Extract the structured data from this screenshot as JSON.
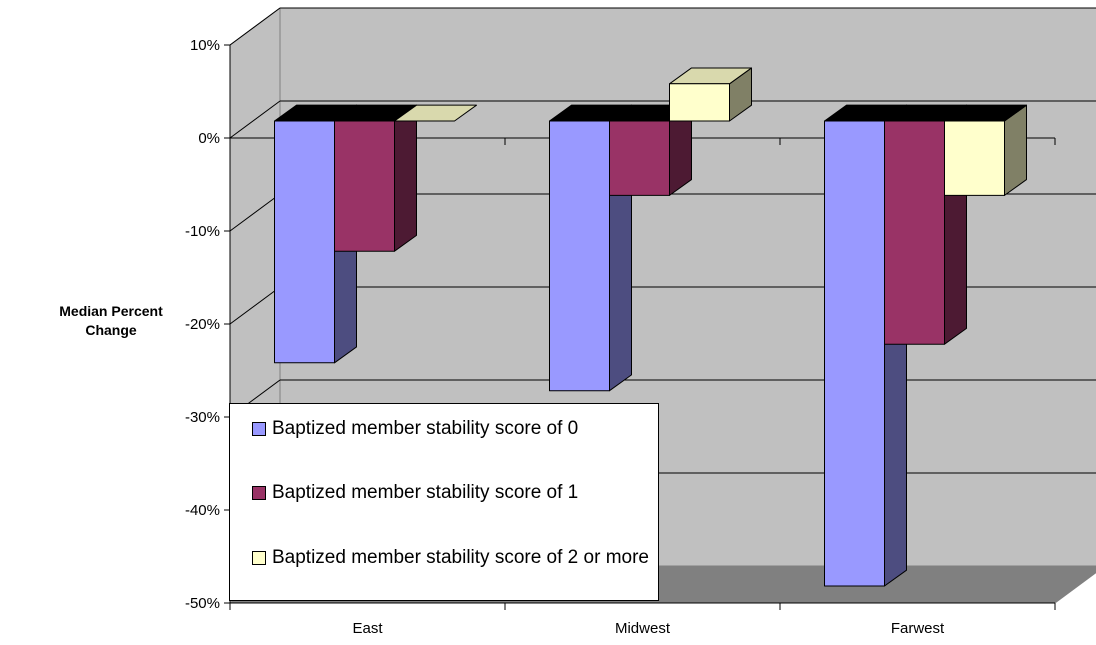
{
  "chart_data": {
    "type": "bar",
    "title": "",
    "xlabel": "",
    "ylabel": "Median Percent Change",
    "categories": [
      "East",
      "Midwest",
      "Farwest"
    ],
    "series": [
      {
        "name": "Baptized member stability score of 0",
        "values": [
          -26,
          -29,
          -50
        ],
        "color": "#9999ff"
      },
      {
        "name": "Baptized member stability score of 1",
        "values": [
          -14,
          -8,
          -24
        ],
        "color": "#993366"
      },
      {
        "name": "Baptized member stability score of 2 or more",
        "values": [
          0,
          4,
          -8
        ],
        "color": "#ffffcc"
      }
    ],
    "ylim": [
      -50,
      10
    ],
    "yticks": [
      10,
      0,
      -10,
      -20,
      -30,
      -40,
      -50
    ],
    "ytick_labels": [
      "10%",
      "0%",
      "-10%",
      "-20%",
      "-30%",
      "-40%",
      "-50%"
    ],
    "grid": true,
    "legend_position": "bottom-left"
  }
}
